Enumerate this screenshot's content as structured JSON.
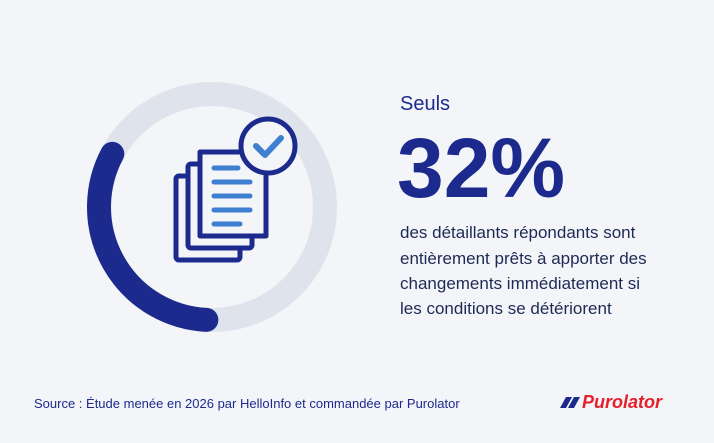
{
  "chart_data": {
    "type": "gauge",
    "intro": "Seuls",
    "values": [
      32
    ],
    "value_labels": [
      "32%"
    ],
    "ylim": [
      0,
      100
    ],
    "color": "#1c2a8e",
    "track_color": "#dfe4ec",
    "description_lines": [
      "des détaillants répondants sont",
      "entièrement prêts à apporter des",
      "changements immédiatement si",
      "les conditions se détériorent"
    ],
    "source": "Source : Étude menée en 2026 par HelloInfo et commandée par Purolator",
    "brand": "Purolator"
  }
}
